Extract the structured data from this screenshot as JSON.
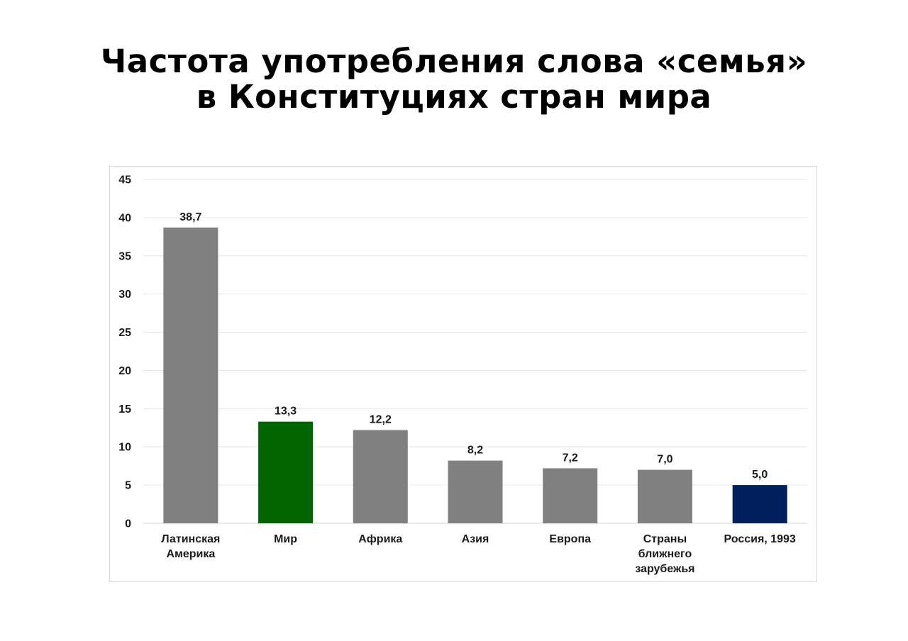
{
  "title": {
    "line1": "Частота употребления слова «семья»",
    "line2": "в Конституциях стран мира"
  },
  "chart_data": {
    "type": "bar",
    "categories": [
      "Латинская Америка",
      "Мир",
      "Африка",
      "Азия",
      "Европа",
      "Страны ближнего зарубежья",
      "Россия, 1993"
    ],
    "category_lines": [
      [
        "Латинская",
        "Америка"
      ],
      [
        "Мир"
      ],
      [
        "Африка"
      ],
      [
        "Азия"
      ],
      [
        "Европа"
      ],
      [
        "Страны",
        "ближнего",
        "зарубежья"
      ],
      [
        "Россия, 1993"
      ]
    ],
    "values": [
      38.7,
      13.3,
      12.2,
      8.2,
      7.2,
      7.0,
      5.0
    ],
    "value_labels": [
      "38,7",
      "13,3",
      "12,2",
      "8,2",
      "7,2",
      "7,0",
      "5,0"
    ],
    "bar_colors": [
      "#808080",
      "#006400",
      "#808080",
      "#808080",
      "#808080",
      "#808080",
      "#00205b"
    ],
    "yticks": [
      0,
      5,
      10,
      15,
      20,
      25,
      30,
      35,
      40,
      45
    ],
    "ylim": [
      0,
      45
    ],
    "grid": true,
    "gridline_color": "#e6e6e6",
    "legend": "none"
  }
}
